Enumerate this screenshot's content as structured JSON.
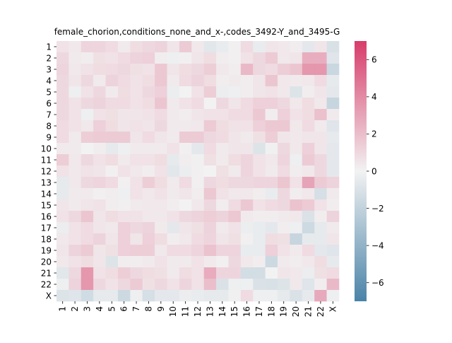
{
  "chart_data": {
    "type": "heatmap",
    "title": "female_chorion,conditions_none_and_x-,codes_3492-Y_and_3495-G",
    "xlabel": "",
    "ylabel": "",
    "x_categories": [
      "1",
      "2",
      "3",
      "4",
      "5",
      "6",
      "7",
      "8",
      "9",
      "10",
      "11",
      "12",
      "13",
      "14",
      "15",
      "16",
      "17",
      "18",
      "19",
      "20",
      "21",
      "22",
      "X"
    ],
    "y_categories": [
      "1",
      "2",
      "3",
      "4",
      "5",
      "6",
      "7",
      "8",
      "9",
      "10",
      "11",
      "12",
      "13",
      "14",
      "15",
      "16",
      "17",
      "18",
      "19",
      "20",
      "21",
      "22",
      "X"
    ],
    "values": [
      [
        0.6,
        0.4,
        1.1,
        1.1,
        0.9,
        0.3,
        0.8,
        1.0,
        1.2,
        0.5,
        1.5,
        0.4,
        -0.7,
        -0.4,
        0.1,
        0.9,
        -0.4,
        0.5,
        0.4,
        0.2,
        -0.6,
        0.5,
        -1.1
      ],
      [
        1.0,
        0.3,
        0.2,
        0.7,
        0.6,
        0.9,
        1.2,
        1.3,
        0.2,
        -0.2,
        0.1,
        0.5,
        0.8,
        0.2,
        0.1,
        0.6,
        1.0,
        1.5,
        0.4,
        0.5,
        2.6,
        2.6,
        -0.8
      ],
      [
        1.1,
        0.4,
        0.6,
        0.8,
        0.9,
        1.0,
        0.7,
        0.6,
        1.6,
        0.5,
        0.8,
        1.0,
        1.4,
        0.4,
        0.2,
        2.2,
        1.0,
        0.9,
        1.4,
        1.7,
        3.5,
        3.5,
        -1.7
      ],
      [
        1.0,
        0.5,
        1.0,
        0.3,
        1.2,
        0.9,
        0.6,
        0.8,
        1.6,
        0.3,
        0.9,
        1.2,
        0.8,
        0.2,
        0.3,
        0.2,
        0.5,
        1.7,
        0.4,
        0.3,
        0.4,
        0.9,
        -0.5
      ],
      [
        1.0,
        -0.2,
        0.6,
        1.0,
        0.3,
        0.8,
        0.6,
        1.0,
        1.3,
        -0.3,
        0.0,
        0.6,
        1.4,
        -0.3,
        -0.2,
        0.2,
        0.5,
        0.6,
        0.4,
        -0.9,
        0.2,
        0.5,
        -0.6
      ],
      [
        1.0,
        0.6,
        1.0,
        1.2,
        0.9,
        0.9,
        0.6,
        0.8,
        1.7,
        0.3,
        0.6,
        0.9,
        0.0,
        1.0,
        0.5,
        0.9,
        1.3,
        1.3,
        1.0,
        0.4,
        0.8,
        0.4,
        -1.8
      ],
      [
        1.0,
        0.6,
        -0.2,
        0.6,
        0.7,
        0.5,
        0.5,
        0.6,
        0.9,
        0.3,
        0.2,
        0.5,
        0.6,
        0.6,
        0.9,
        0.9,
        1.6,
        0.2,
        1.3,
        0.6,
        0.8,
        1.9,
        0.3
      ],
      [
        0.9,
        0.6,
        0.4,
        1.3,
        0.8,
        0.5,
        0.6,
        0.5,
        1.0,
        0.3,
        0.3,
        0.4,
        1.5,
        0.8,
        0.6,
        0.6,
        1.3,
        1.6,
        1.6,
        0.4,
        0.9,
        0.3,
        -0.8
      ],
      [
        0.9,
        0.3,
        1.4,
        1.5,
        1.5,
        1.5,
        0.5,
        0.9,
        0.5,
        0.3,
        1.5,
        1.5,
        1.0,
        0.9,
        0.5,
        0.3,
        0.7,
        1.4,
        0.5,
        0.4,
        0.5,
        0.5,
        -0.5
      ],
      [
        0.3,
        0.3,
        0.0,
        0.2,
        -0.5,
        -0.2,
        0.3,
        0.3,
        0.3,
        0.6,
        0.1,
        -0.6,
        0.9,
        0.3,
        0.5,
        0.5,
        -0.9,
        -0.1,
        1.0,
        0.4,
        1.3,
        0.5,
        -0.6
      ],
      [
        1.4,
        0.4,
        1.0,
        0.6,
        0.8,
        0.3,
        0.6,
        0.6,
        0.8,
        -0.5,
        0.2,
        -0.1,
        0.7,
        0.3,
        0.8,
        1.1,
        0.6,
        0.4,
        1.1,
        -0.2,
        1.5,
        1.0,
        -0.6
      ],
      [
        0.6,
        0.4,
        0.6,
        0.5,
        0.1,
        0.6,
        0.4,
        0.2,
        0.6,
        -0.7,
        -0.3,
        0.1,
        0.0,
        0.7,
        0.3,
        1.1,
        0.6,
        0.3,
        0.9,
        0.2,
        0.4,
        1.0,
        -0.6
      ],
      [
        -0.5,
        0.4,
        1.0,
        1.1,
        0.9,
        0.1,
        0.6,
        1.4,
        0.8,
        0.3,
        0.9,
        0.1,
        1.0,
        0.8,
        1.0,
        1.0,
        1.1,
        1.1,
        1.7,
        0.6,
        3.0,
        1.5,
        1.2
      ],
      [
        -0.5,
        0.3,
        0.3,
        0.1,
        0.2,
        -0.2,
        0.6,
        0.4,
        0.6,
        0.3,
        0.5,
        0.2,
        1.6,
        0.6,
        0.4,
        0.4,
        0.2,
        -0.4,
        1.0,
        0.2,
        0.4,
        -1.2,
        0.3
      ],
      [
        0.5,
        0.3,
        0.5,
        0.6,
        0.2,
        0.1,
        0.3,
        0.4,
        0.4,
        0.2,
        0.0,
        0.4,
        1.0,
        0.2,
        0.9,
        1.6,
        0.6,
        0.9,
        1.0,
        1.8,
        1.5,
        0.6,
        0.2
      ],
      [
        0.6,
        1.0,
        1.7,
        0.5,
        0.8,
        0.6,
        0.6,
        0.4,
        0.4,
        0.6,
        1.0,
        1.2,
        1.4,
        1.2,
        1.6,
        0.3,
        0.2,
        0.2,
        0.3,
        0.4,
        -1.0,
        0.2,
        1.2
      ],
      [
        -0.3,
        0.6,
        0.9,
        0.5,
        0.4,
        1.3,
        1.0,
        1.2,
        0.3,
        -0.6,
        0.5,
        0.7,
        1.2,
        0.3,
        0.6,
        -0.3,
        -0.4,
        -0.6,
        0.2,
        -0.2,
        -1.5,
        -0.5,
        0.3
      ],
      [
        0.4,
        0.6,
        0.9,
        1.2,
        0.5,
        1.3,
        0.5,
        1.3,
        0.8,
        0.2,
        0.4,
        0.9,
        1.1,
        0.5,
        0.7,
        0.1,
        -0.4,
        0.8,
        0.7,
        -1.8,
        -0.5,
        -0.5,
        0.5
      ],
      [
        0.5,
        1.2,
        1.5,
        0.5,
        0.7,
        1.3,
        1.4,
        1.4,
        0.4,
        0.9,
        0.9,
        1.1,
        1.8,
        1.1,
        1.1,
        -0.4,
        -0.4,
        1.3,
        0.6,
        0.3,
        0.9,
        -0.6,
        -0.8
      ],
      [
        0.4,
        0.6,
        0.8,
        0.5,
        -0.9,
        0.2,
        0.2,
        0.3,
        0.6,
        0.3,
        0.3,
        0.6,
        0.3,
        0.1,
        1.0,
        0.4,
        0.2,
        -1.6,
        0.3,
        0.2,
        0.4,
        0.8,
        -0.5
      ],
      [
        -0.7,
        1.0,
        3.5,
        0.6,
        0.8,
        1.4,
        1.0,
        0.8,
        0.7,
        0.3,
        0.8,
        0.6,
        2.7,
        1.1,
        1.1,
        -1.3,
        -1.3,
        0.0,
        0.5,
        0.4,
        -0.3,
        0.7,
        0.9
      ],
      [
        -0.2,
        1.2,
        3.5,
        1.0,
        0.6,
        1.0,
        1.5,
        0.7,
        1.0,
        0.6,
        1.1,
        0.6,
        2.0,
        -1.0,
        -0.2,
        -0.2,
        -1.0,
        -1.1,
        -0.9,
        0.4,
        -0.8,
        0.2,
        2.2
      ],
      [
        -0.9,
        -0.8,
        -1.4,
        -0.5,
        -0.5,
        -1.6,
        -0.2,
        -1.2,
        -0.6,
        -0.6,
        -0.3,
        -0.4,
        -0.5,
        -0.5,
        -0.1,
        0.9,
        -0.2,
        -0.2,
        -0.5,
        -1.0,
        -0.5,
        2.8,
        -0.2
      ]
    ],
    "colorbar": {
      "min": -7,
      "max": 7,
      "ticks": [
        -6,
        -4,
        -2,
        0,
        2,
        4,
        6
      ],
      "low_color": "#4a83a8",
      "mid_color": "#f2f2f2",
      "high_color": "#d73c6a"
    },
    "grid": false,
    "legend": "colorbar-right"
  }
}
